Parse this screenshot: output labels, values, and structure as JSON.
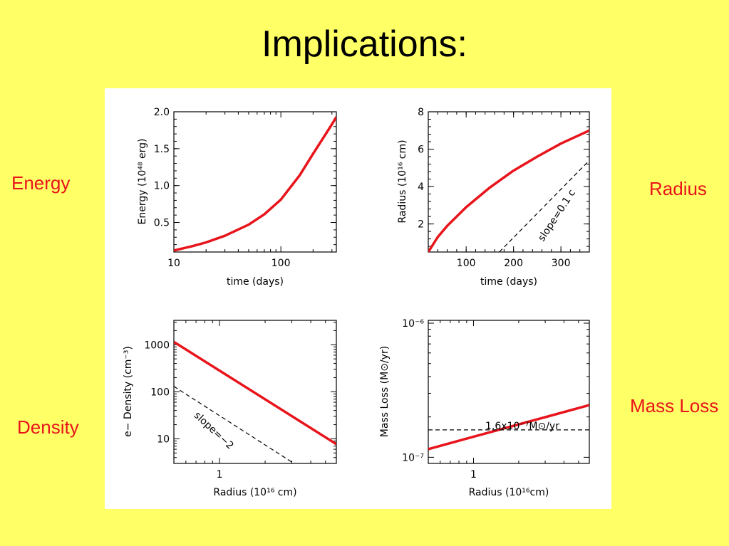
{
  "slide": {
    "title": "Implications:",
    "labels": {
      "energy": "Energy",
      "radius": "Radius",
      "density": "Density",
      "mass_loss": "Mass Loss"
    },
    "colors": {
      "background": "#ffff66",
      "label": "#e8141b",
      "curve": "#e8141b"
    }
  },
  "chart_data": [
    {
      "type": "line",
      "title": "",
      "xlabel": "time (days)",
      "ylabel": "Energy (10⁴⁸ erg)",
      "xscale": "log",
      "xlim": [
        10,
        330
      ],
      "ylim": [
        0.1,
        2.0
      ],
      "xticks": [
        10,
        100
      ],
      "xtick_labels": [
        "10",
        "100"
      ],
      "yticks": [
        0.5,
        1.0,
        1.5,
        2.0
      ],
      "ytick_labels": [
        "0.5",
        "1.0",
        "1.5",
        "2.0"
      ],
      "series": [
        {
          "x": [
            10,
            15,
            20,
            30,
            50,
            70,
            100,
            150,
            200,
            250,
            300,
            330
          ],
          "y": [
            0.12,
            0.18,
            0.23,
            0.32,
            0.47,
            0.61,
            0.81,
            1.14,
            1.43,
            1.65,
            1.83,
            1.93
          ]
        }
      ]
    },
    {
      "type": "line",
      "title": "",
      "xlabel": "time (days)",
      "ylabel": "Radius (10¹⁶ cm)",
      "xlim": [
        20,
        360
      ],
      "ylim": [
        0.5,
        8
      ],
      "xticks": [
        100,
        200,
        300
      ],
      "xtick_labels": [
        "100",
        "200",
        "300"
      ],
      "yticks": [
        2,
        4,
        6,
        8
      ],
      "ytick_labels": [
        "2",
        "4",
        "6",
        "8"
      ],
      "series": [
        {
          "x": [
            20,
            40,
            60,
            80,
            100,
            150,
            200,
            250,
            300,
            360
          ],
          "y": [
            0.5,
            1.3,
            1.9,
            2.4,
            2.9,
            3.95,
            4.85,
            5.6,
            6.3,
            7.0
          ]
        },
        {
          "x": [
            170,
            360
          ],
          "y": [
            0.5,
            5.4
          ],
          "style": "dashed"
        }
      ],
      "annotations": [
        "slope=0.1 c"
      ]
    },
    {
      "type": "line",
      "title": "",
      "xlabel": "Radius (10¹⁶ cm)",
      "ylabel": "e− Density (cm⁻³)",
      "xscale": "log",
      "yscale": "log",
      "xlim": [
        0.5,
        5.9
      ],
      "ylim": [
        3,
        3300
      ],
      "xticks": [
        1
      ],
      "xtick_labels": [
        "1"
      ],
      "yticks": [
        10,
        100,
        1000
      ],
      "ytick_labels": [
        "10",
        "100",
        "1000"
      ],
      "series": [
        {
          "x": [
            0.5,
            5.9
          ],
          "y": [
            1150,
            7.7
          ]
        },
        {
          "x": [
            0.5,
            3.1
          ],
          "y": [
            130,
            3.0
          ],
          "style": "dashed"
        }
      ],
      "annotations": [
        "slope=−2"
      ]
    },
    {
      "type": "line",
      "title": "",
      "xlabel": "Radius (10¹⁶cm)",
      "ylabel": "Mass Loss (M⊙/yr)",
      "xscale": "log",
      "yscale": "log",
      "xlim": [
        0.5,
        5.9
      ],
      "ylim": [
        9e-08,
        1.05e-06
      ],
      "xticks": [
        1
      ],
      "xtick_labels": [
        "1"
      ],
      "yticks": [
        1e-07,
        1e-06
      ],
      "ytick_labels": [
        "10⁻⁷",
        "10⁻⁶"
      ],
      "series": [
        {
          "x": [
            0.5,
            5.9
          ],
          "y": [
            1.15e-07,
            2.45e-07
          ]
        },
        {
          "x": [
            0.5,
            5.9
          ],
          "y": [
            1.6e-07,
            1.6e-07
          ],
          "style": "dashed"
        }
      ],
      "annotations": [
        "1.6x10⁻⁷M⊙/yr"
      ]
    }
  ]
}
